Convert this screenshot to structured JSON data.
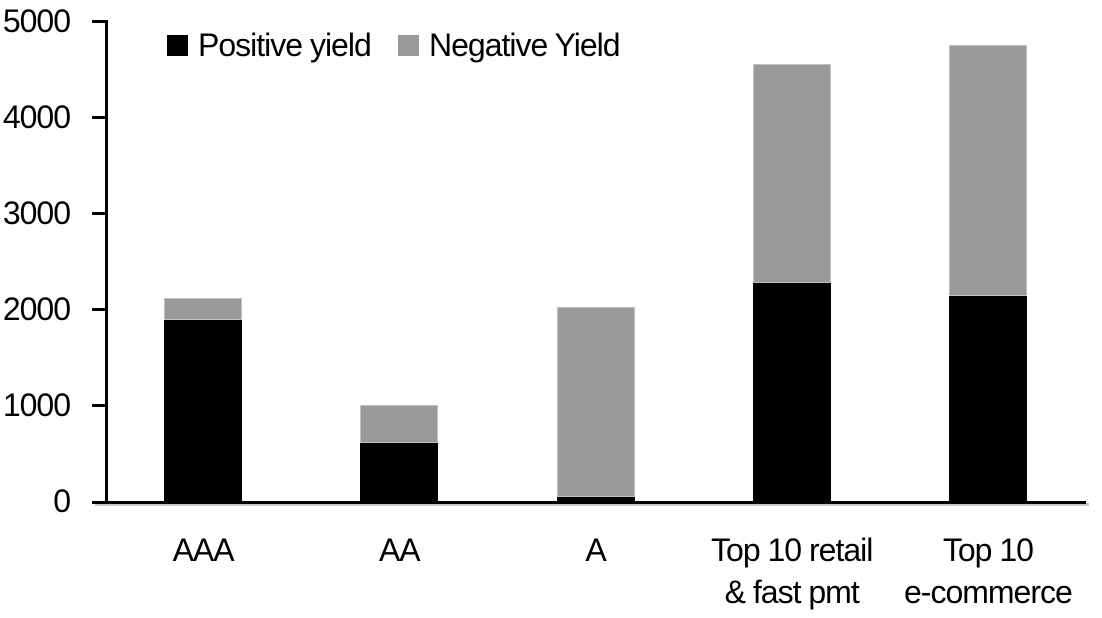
{
  "chart_data": {
    "type": "bar",
    "stacked": true,
    "title": "",
    "categories": [
      "AAA",
      "AA",
      "A",
      "Top 10 retail & fast pmt",
      "Top 10 e-commerce"
    ],
    "category_label_lines": [
      [
        "AAA"
      ],
      [
        "AA"
      ],
      [
        "A"
      ],
      [
        "Top 10 retail",
        "& fast pmt"
      ],
      [
        "Top 10",
        "e-commerce"
      ]
    ],
    "series": [
      {
        "name": "Positive yield",
        "color": "#000000",
        "values": [
          1890,
          600,
          45,
          2270,
          2140
        ]
      },
      {
        "name": "Negative Yield",
        "color": "#999999",
        "values": [
          220,
          400,
          1980,
          2280,
          2610
        ]
      }
    ],
    "totals": [
      2110,
      1000,
      2025,
      4550,
      4750
    ],
    "xlabel": "",
    "ylabel": "",
    "ylim": [
      0,
      5000
    ],
    "yticks": [
      0,
      1000,
      2000,
      3000,
      4000,
      5000
    ],
    "grid": false,
    "legend_position": "top",
    "axis_color": "#000000",
    "background_color": "#ffffff"
  }
}
